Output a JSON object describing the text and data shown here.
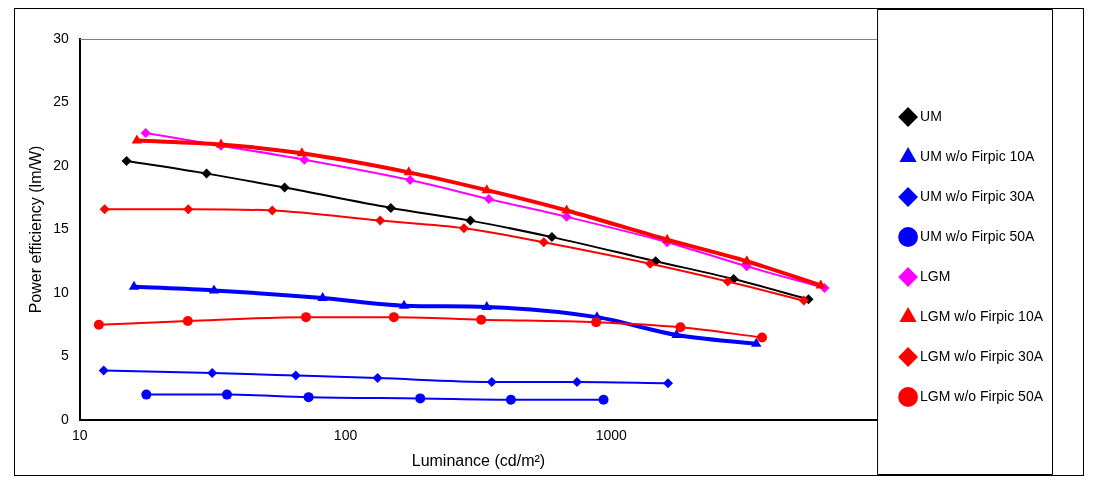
{
  "chart_data": {
    "type": "line",
    "xlabel": "Luminance (cd/m²)",
    "ylabel": "Power efficiency (lm/W)",
    "log": "x",
    "xlim": [
      10,
      10000
    ],
    "xticks": [
      10,
      100,
      1000
    ],
    "ylim": [
      0,
      30
    ],
    "yticks": [
      0,
      5,
      10,
      15,
      20,
      25,
      30
    ],
    "grid": false,
    "legend": "right",
    "series": [
      {
        "name": "UM",
        "color": "#000000",
        "marker": "diamond",
        "x": [
          15,
          30,
          59,
          148,
          295,
          598,
          1469,
          2885,
          5520
        ],
        "values": [
          20.4,
          19.4,
          18.3,
          16.7,
          15.7,
          14.4,
          12.5,
          11.1,
          9.5
        ]
      },
      {
        "name": "UM w/o Firpic 10A",
        "color": "#0000ff",
        "marker": "triangle",
        "x": [
          16,
          32,
          82,
          166,
          340,
          883,
          1760,
          3510
        ],
        "values": [
          10.5,
          10.2,
          9.6,
          9.0,
          8.9,
          8.1,
          6.7,
          6.0
        ]
      },
      {
        "name": "UM w/o Firpic 30A",
        "color": "#0000ff",
        "marker": "diamond",
        "x": [
          12.3,
          31.5,
          65,
          132,
          355,
          743,
          1634
        ],
        "values": [
          3.9,
          3.7,
          3.5,
          3.3,
          3.0,
          3.0,
          2.9
        ]
      },
      {
        "name": "UM w/o Firpic 50A",
        "color": "#0000ff",
        "marker": "circle",
        "x": [
          17.8,
          35.8,
          72.6,
          191,
          419,
          935
        ],
        "values": [
          2.0,
          2.0,
          1.8,
          1.7,
          1.6,
          1.6
        ]
      },
      {
        "name": "LGM",
        "color": "#ff00ff",
        "marker": "diamond",
        "x": [
          17.7,
          34,
          70,
          175,
          346,
          679,
          1622,
          3234,
          6340
        ],
        "values": [
          22.6,
          21.6,
          20.5,
          18.9,
          17.4,
          16.0,
          14.0,
          12.1,
          10.4
        ]
      },
      {
        "name": "LGM w/o Firpic 10A",
        "color": "#ff0000",
        "marker": "triangle",
        "x": [
          16.4,
          34,
          68.5,
          173,
          340,
          679,
          1622,
          3234,
          6140
        ],
        "values": [
          22.0,
          21.7,
          21.0,
          19.5,
          18.1,
          16.5,
          14.2,
          12.5,
          10.6
        ]
      },
      {
        "name": "LGM w/o Firpic 30A",
        "color": "#ff0000",
        "marker": "diamond",
        "x": [
          12.4,
          25.6,
          53,
          135,
          279,
          557,
          1400,
          2743,
          5300
        ],
        "values": [
          16.6,
          16.6,
          16.5,
          15.7,
          15.1,
          14.0,
          12.3,
          10.9,
          9.4
        ]
      },
      {
        "name": "LGM w/o Firpic 50A",
        "color": "#ff0000",
        "marker": "circle",
        "x": [
          11.8,
          25.5,
          71,
          152,
          324,
          877,
          1820,
          3690
        ],
        "values": [
          7.5,
          7.8,
          8.1,
          8.1,
          7.9,
          7.7,
          7.3,
          6.5
        ]
      }
    ]
  }
}
